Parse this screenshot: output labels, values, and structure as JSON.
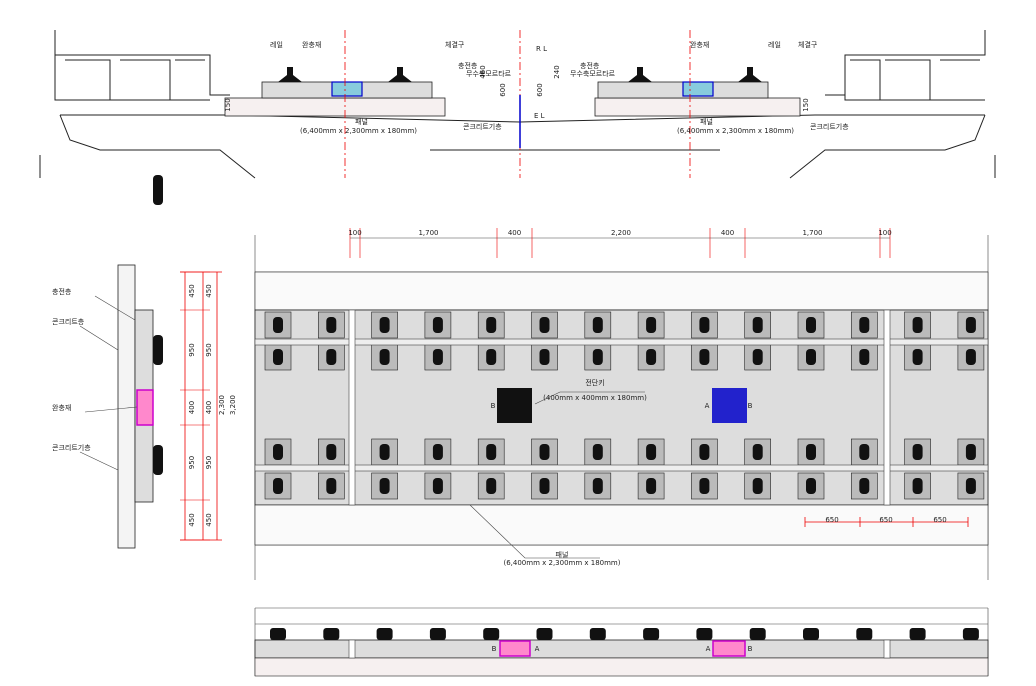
{
  "section": {
    "left": {
      "labels": [
        "레일",
        "완충재",
        "체결구",
        "충전층",
        "무수축모르타르",
        "패널",
        "(6,400mm x 2,300mm x 180mm)",
        "콘크리트기층"
      ],
      "dims": [
        "150",
        "460",
        "600"
      ]
    },
    "right": {
      "labels": [
        "완충재",
        "레일",
        "체결구",
        "충전층",
        "무수축모르타르",
        "패널",
        "(6,400mm x 2,300mm x 180mm)",
        "콘크리트기층"
      ],
      "dims": [
        "600",
        "240",
        "150"
      ]
    },
    "center": "R L",
    "level": "E L"
  },
  "plan": {
    "dims": [
      "100",
      "1,700",
      "400",
      "2,200",
      "400",
      "1,700",
      "100"
    ],
    "shear_key": "전단키",
    "shear_key_size": "(400mm x 400mm x 180mm)",
    "panel": "패널",
    "panel_size": "(6,400mm x 2,300mm x 180mm)",
    "key_marks": [
      "B",
      "A",
      "B"
    ],
    "spacing": [
      "650",
      "650",
      "650"
    ]
  },
  "side": {
    "labels": [
      "충전층",
      "콘크리트층",
      "완충재",
      "콘크리트기층"
    ],
    "dims": [
      "450",
      "950",
      "400",
      "950",
      "450"
    ],
    "inner_total": "2,300",
    "total": "3,200"
  },
  "elevation": {
    "key_marks": [
      "B",
      "A",
      "A",
      "B"
    ]
  }
}
